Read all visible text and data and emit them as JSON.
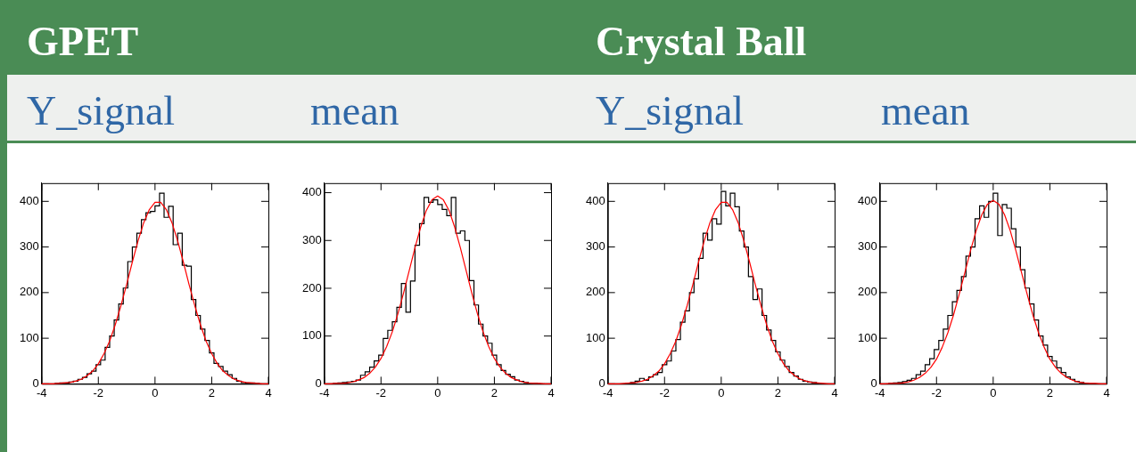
{
  "chart_data": [
    {
      "type": "other",
      "annotations": [
        "GPET",
        "Crystal Ball"
      ]
    },
    {
      "type": "histogram",
      "title": "Y_signal",
      "bins": [
        -4,
        -3.84,
        -3.68,
        -3.52,
        -3.36,
        -3.2,
        -3.04,
        -2.88,
        -2.72,
        -2.56,
        -2.4,
        -2.24,
        -2.08,
        -1.92,
        -1.76,
        -1.6,
        -1.44,
        -1.28,
        -1.12,
        -0.96,
        -0.8,
        -0.64,
        -0.48,
        -0.32,
        -0.16,
        0,
        0.16,
        0.32,
        0.48,
        0.64,
        0.8,
        0.96,
        1.12,
        1.28,
        1.44,
        1.6,
        1.76,
        1.92,
        2.08,
        2.24,
        2.4,
        2.56,
        2.72,
        2.88,
        3.04,
        3.2,
        3.36,
        3.52,
        3.68,
        3.84,
        4
      ],
      "xlim": [
        -4,
        4
      ],
      "xticks": [
        -4,
        -2,
        0,
        2,
        4
      ],
      "ylim": [
        0,
        440
      ],
      "yticks": [
        0,
        100,
        200,
        300,
        400
      ],
      "grid": false,
      "legend": false,
      "series": [
        {
          "type": "histogram",
          "color": "#000000",
          "values": [
            0,
            0,
            0,
            1,
            2,
            2,
            4,
            6,
            10,
            14,
            22,
            28,
            42,
            52,
            80,
            105,
            140,
            175,
            210,
            268,
            300,
            330,
            360,
            375,
            378,
            390,
            418,
            365,
            389,
            305,
            330,
            260,
            258,
            185,
            150,
            120,
            95,
            68,
            45,
            38,
            28,
            20,
            12,
            6,
            3,
            2,
            2,
            1,
            0,
            0
          ]
        },
        {
          "type": "line",
          "color": "#ff0000",
          "marker": "none",
          "x": [
            -4,
            -3.8,
            -3.6,
            -3.4,
            -3.2,
            -3,
            -2.8,
            -2.6,
            -2.4,
            -2.2,
            -2,
            -1.8,
            -1.6,
            -1.4,
            -1.2,
            -1,
            -0.8,
            -0.6,
            -0.4,
            -0.2,
            0,
            0.2,
            0.4,
            0.6,
            0.8,
            1,
            1.2,
            1.4,
            1.6,
            1.8,
            2,
            2.2,
            2.4,
            2.6,
            2.8,
            3,
            3.2,
            3.4,
            3.6,
            3.8,
            4
          ],
          "values": [
            0,
            0,
            0,
            1,
            2,
            3,
            6,
            10,
            18,
            28,
            44,
            66,
            94,
            130,
            172,
            218,
            267,
            313,
            353,
            382,
            398,
            398,
            382,
            353,
            313,
            267,
            218,
            172,
            130,
            94,
            66,
            44,
            28,
            18,
            10,
            6,
            3,
            2,
            1,
            0,
            0
          ]
        }
      ]
    },
    {
      "type": "histogram",
      "title": "mean",
      "bins": [
        -4,
        -3.84,
        -3.68,
        -3.52,
        -3.36,
        -3.2,
        -3.04,
        -2.88,
        -2.72,
        -2.56,
        -2.4,
        -2.24,
        -2.08,
        -1.92,
        -1.76,
        -1.6,
        -1.44,
        -1.28,
        -1.12,
        -0.96,
        -0.8,
        -0.64,
        -0.48,
        -0.32,
        -0.16,
        0,
        0.16,
        0.32,
        0.48,
        0.64,
        0.8,
        0.96,
        1.12,
        1.28,
        1.44,
        1.6,
        1.76,
        1.92,
        2.08,
        2.24,
        2.4,
        2.56,
        2.72,
        2.88,
        3.04,
        3.2,
        3.36,
        3.52,
        3.68,
        3.84,
        4
      ],
      "xlim": [
        -4,
        4
      ],
      "xticks": [
        -4,
        -2,
        0,
        2,
        4
      ],
      "ylim": [
        0,
        420
      ],
      "yticks": [
        0,
        100,
        200,
        300,
        400
      ],
      "grid": false,
      "legend": false,
      "series": [
        {
          "type": "histogram",
          "color": "#000000",
          "values": [
            0,
            0,
            1,
            2,
            3,
            4,
            5,
            8,
            18,
            25,
            35,
            48,
            60,
            95,
            112,
            130,
            160,
            210,
            150,
            215,
            290,
            335,
            390,
            380,
            385,
            375,
            365,
            352,
            390,
            315,
            320,
            300,
            216,
            165,
            125,
            100,
            85,
            60,
            40,
            28,
            20,
            15,
            8,
            5,
            3,
            1,
            1,
            0,
            0,
            0
          ]
        },
        {
          "type": "line",
          "color": "#ff0000",
          "marker": "none",
          "x": [
            -4,
            -3.8,
            -3.6,
            -3.4,
            -3.2,
            -3,
            -2.8,
            -2.6,
            -2.4,
            -2.2,
            -2,
            -1.8,
            -1.6,
            -1.4,
            -1.2,
            -1,
            -0.8,
            -0.6,
            -0.4,
            -0.2,
            0,
            0.2,
            0.4,
            0.6,
            0.8,
            1,
            1.2,
            1.4,
            1.6,
            1.8,
            2,
            2.2,
            2.4,
            2.6,
            2.8,
            3,
            3.2,
            3.4,
            3.6,
            3.8,
            4
          ],
          "values": [
            0,
            0,
            1,
            1,
            2,
            4,
            8,
            13,
            22,
            35,
            53,
            78,
            109,
            147,
            191,
            238,
            285,
            328,
            363,
            385,
            393,
            385,
            363,
            328,
            285,
            238,
            191,
            147,
            109,
            78,
            53,
            35,
            22,
            13,
            8,
            4,
            2,
            1,
            1,
            0,
            0
          ]
        }
      ]
    },
    {
      "type": "histogram",
      "title": "Y_signal",
      "bins": [
        -4,
        -3.84,
        -3.68,
        -3.52,
        -3.36,
        -3.2,
        -3.04,
        -2.88,
        -2.72,
        -2.56,
        -2.4,
        -2.24,
        -2.08,
        -1.92,
        -1.76,
        -1.6,
        -1.44,
        -1.28,
        -1.12,
        -0.96,
        -0.8,
        -0.64,
        -0.48,
        -0.32,
        -0.16,
        0,
        0.16,
        0.32,
        0.48,
        0.64,
        0.8,
        0.96,
        1.12,
        1.28,
        1.44,
        1.6,
        1.76,
        1.92,
        2.08,
        2.24,
        2.4,
        2.56,
        2.72,
        2.88,
        3.04,
        3.2,
        3.36,
        3.52,
        3.68,
        3.84,
        4
      ],
      "xlim": [
        -4,
        4
      ],
      "xticks": [
        -4,
        -2,
        0,
        2,
        4
      ],
      "ylim": [
        0,
        440
      ],
      "yticks": [
        0,
        100,
        200,
        300,
        400
      ],
      "grid": false,
      "legend": false,
      "series": [
        {
          "type": "histogram",
          "color": "#000000",
          "values": [
            0,
            0,
            0,
            0,
            1,
            3,
            6,
            12,
            8,
            15,
            20,
            25,
            42,
            50,
            72,
            97,
            135,
            160,
            200,
            230,
            275,
            330,
            315,
            362,
            350,
            422,
            390,
            418,
            388,
            335,
            300,
            235,
            185,
            208,
            150,
            118,
            95,
            70,
            52,
            38,
            25,
            17,
            10,
            6,
            4,
            3,
            1,
            0,
            0,
            0
          ]
        },
        {
          "type": "line",
          "color": "#ff0000",
          "marker": "none",
          "x": [
            -4,
            -3.8,
            -3.6,
            -3.4,
            -3.2,
            -3,
            -2.8,
            -2.6,
            -2.4,
            -2.2,
            -2,
            -1.8,
            -1.6,
            -1.4,
            -1.2,
            -1,
            -0.8,
            -0.6,
            -0.4,
            -0.2,
            0,
            0.2,
            0.4,
            0.6,
            0.8,
            1,
            1.2,
            1.4,
            1.6,
            1.8,
            2,
            2.2,
            2.4,
            2.6,
            2.8,
            3,
            3.2,
            3.4,
            3.6,
            3.8,
            4
          ],
          "values": [
            0,
            0,
            0,
            1,
            2,
            3,
            6,
            10,
            18,
            28,
            44,
            66,
            94,
            130,
            172,
            218,
            267,
            313,
            353,
            382,
            398,
            398,
            382,
            353,
            313,
            267,
            218,
            172,
            130,
            94,
            66,
            44,
            28,
            18,
            10,
            6,
            3,
            2,
            1,
            0,
            0
          ]
        }
      ]
    },
    {
      "type": "histogram",
      "title": "mean",
      "bins": [
        -4,
        -3.84,
        -3.68,
        -3.52,
        -3.36,
        -3.2,
        -3.04,
        -2.88,
        -2.72,
        -2.56,
        -2.4,
        -2.24,
        -2.08,
        -1.92,
        -1.76,
        -1.6,
        -1.44,
        -1.28,
        -1.12,
        -0.96,
        -0.8,
        -0.64,
        -0.48,
        -0.32,
        -0.16,
        0,
        0.16,
        0.32,
        0.48,
        0.64,
        0.8,
        0.96,
        1.12,
        1.28,
        1.44,
        1.6,
        1.76,
        1.92,
        2.08,
        2.24,
        2.4,
        2.56,
        2.72,
        2.88,
        3.04,
        3.2,
        3.36,
        3.52,
        3.68,
        3.84,
        4
      ],
      "xlim": [
        -4,
        4
      ],
      "xticks": [
        -4,
        -2,
        0,
        2,
        4
      ],
      "ylim": [
        0,
        440
      ],
      "yticks": [
        0,
        100,
        200,
        300,
        400
      ],
      "grid": false,
      "legend": false,
      "series": [
        {
          "type": "histogram",
          "color": "#000000",
          "values": [
            0,
            0,
            1,
            2,
            3,
            5,
            8,
            12,
            20,
            28,
            42,
            55,
            75,
            95,
            120,
            150,
            180,
            205,
            235,
            280,
            300,
            362,
            390,
            365,
            400,
            418,
            325,
            393,
            385,
            340,
            300,
            250,
            210,
            175,
            140,
            105,
            85,
            60,
            50,
            35,
            25,
            15,
            10,
            5,
            3,
            1,
            0,
            0,
            0,
            0
          ]
        },
        {
          "type": "line",
          "color": "#ff0000",
          "marker": "none",
          "x": [
            -4,
            -3.8,
            -3.6,
            -3.4,
            -3.2,
            -3,
            -2.8,
            -2.6,
            -2.4,
            -2.2,
            -2,
            -1.8,
            -1.6,
            -1.4,
            -1.2,
            -1,
            -0.8,
            -0.6,
            -0.4,
            -0.2,
            0,
            0.2,
            0.4,
            0.6,
            0.8,
            1,
            1.2,
            1.4,
            1.6,
            1.8,
            2,
            2.2,
            2.4,
            2.6,
            2.8,
            3,
            3.2,
            3.4,
            3.6,
            3.8,
            4
          ],
          "values": [
            0,
            0,
            1,
            1,
            2,
            4,
            8,
            14,
            23,
            36,
            54,
            80,
            112,
            151,
            196,
            244,
            292,
            336,
            371,
            394,
            402,
            394,
            371,
            336,
            292,
            244,
            196,
            151,
            112,
            80,
            54,
            36,
            23,
            14,
            8,
            4,
            2,
            1,
            1,
            0,
            0
          ]
        }
      ]
    }
  ]
}
